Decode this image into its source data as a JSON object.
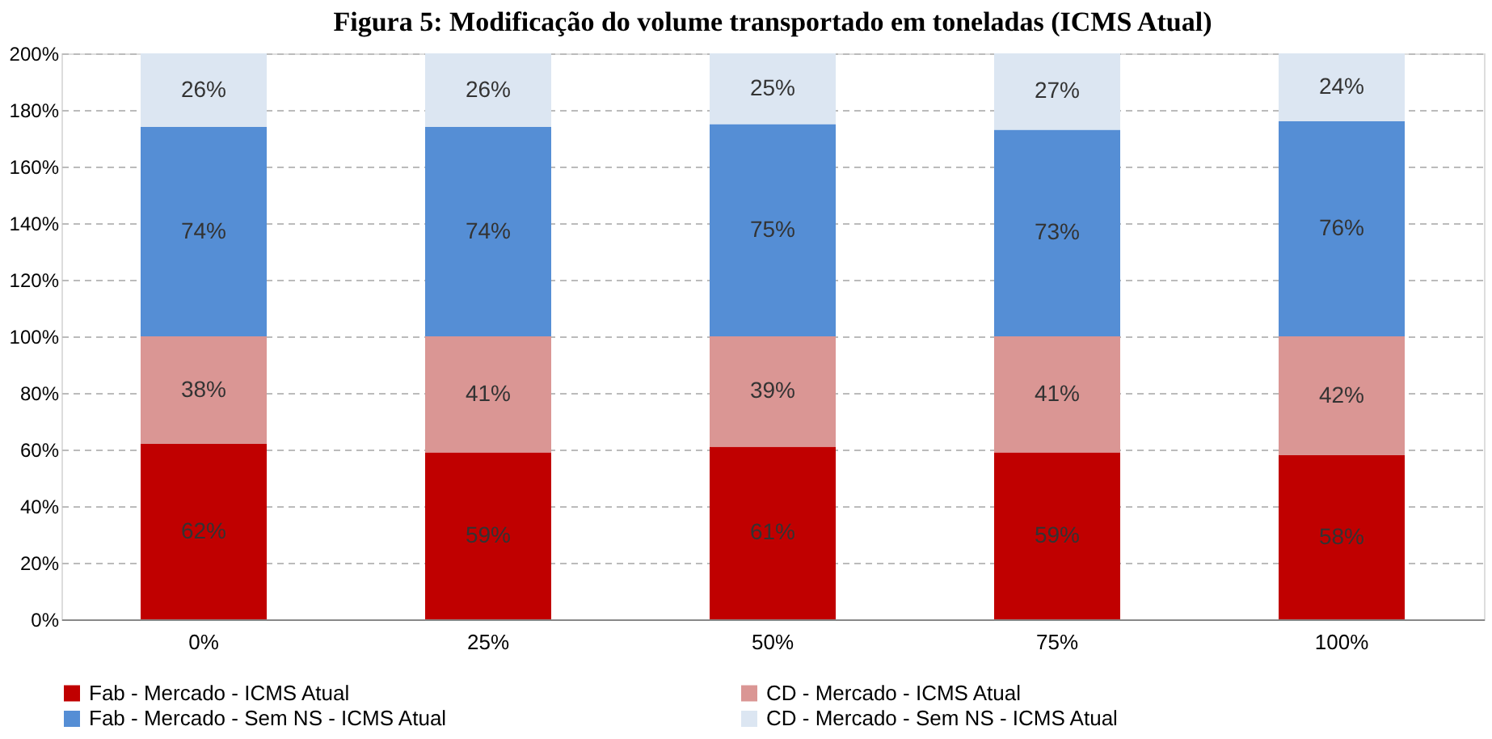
{
  "chart_data": {
    "type": "bar",
    "stacked": true,
    "title": "Figura 5: Modificação do volume transportado em toneladas (ICMS Atual)",
    "categories": [
      "0%",
      "25%",
      "50%",
      "75%",
      "100%"
    ],
    "series": [
      {
        "name": "Fab - Mercado - ICMS Atual",
        "color": "#c00000",
        "values": [
          62,
          59,
          61,
          59,
          58
        ],
        "value_labels": [
          "62%",
          "59%",
          "61%",
          "59%",
          "58%"
        ]
      },
      {
        "name": "CD - Mercado - ICMS Atual",
        "color": "#da9694",
        "values": [
          38,
          41,
          39,
          41,
          42
        ],
        "value_labels": [
          "38%",
          "41%",
          "39%",
          "41%",
          "42%"
        ]
      },
      {
        "name": "Fab - Mercado - Sem NS - ICMS Atual",
        "color": "#558ed5",
        "values": [
          74,
          74,
          75,
          73,
          76
        ],
        "value_labels": [
          "74%",
          "74%",
          "75%",
          "73%",
          "76%"
        ]
      },
      {
        "name": "CD - Mercado - Sem NS - ICMS Atual",
        "color": "#dce6f2",
        "values": [
          26,
          26,
          25,
          27,
          24
        ],
        "value_labels": [
          "26%",
          "26%",
          "25%",
          "27%",
          "24%"
        ]
      }
    ],
    "ylim": [
      0,
      200
    ],
    "yticks": [
      {
        "value": 0,
        "label": "0%"
      },
      {
        "value": 20,
        "label": "20%"
      },
      {
        "value": 40,
        "label": "40%"
      },
      {
        "value": 60,
        "label": "60%"
      },
      {
        "value": 80,
        "label": "80%"
      },
      {
        "value": 100,
        "label": "100%"
      },
      {
        "value": 120,
        "label": "120%"
      },
      {
        "value": 140,
        "label": "140%"
      },
      {
        "value": 160,
        "label": "160%"
      },
      {
        "value": 180,
        "label": "180%"
      },
      {
        "value": 200,
        "label": "200%"
      }
    ],
    "grid": "y",
    "legend": "bottom"
  }
}
